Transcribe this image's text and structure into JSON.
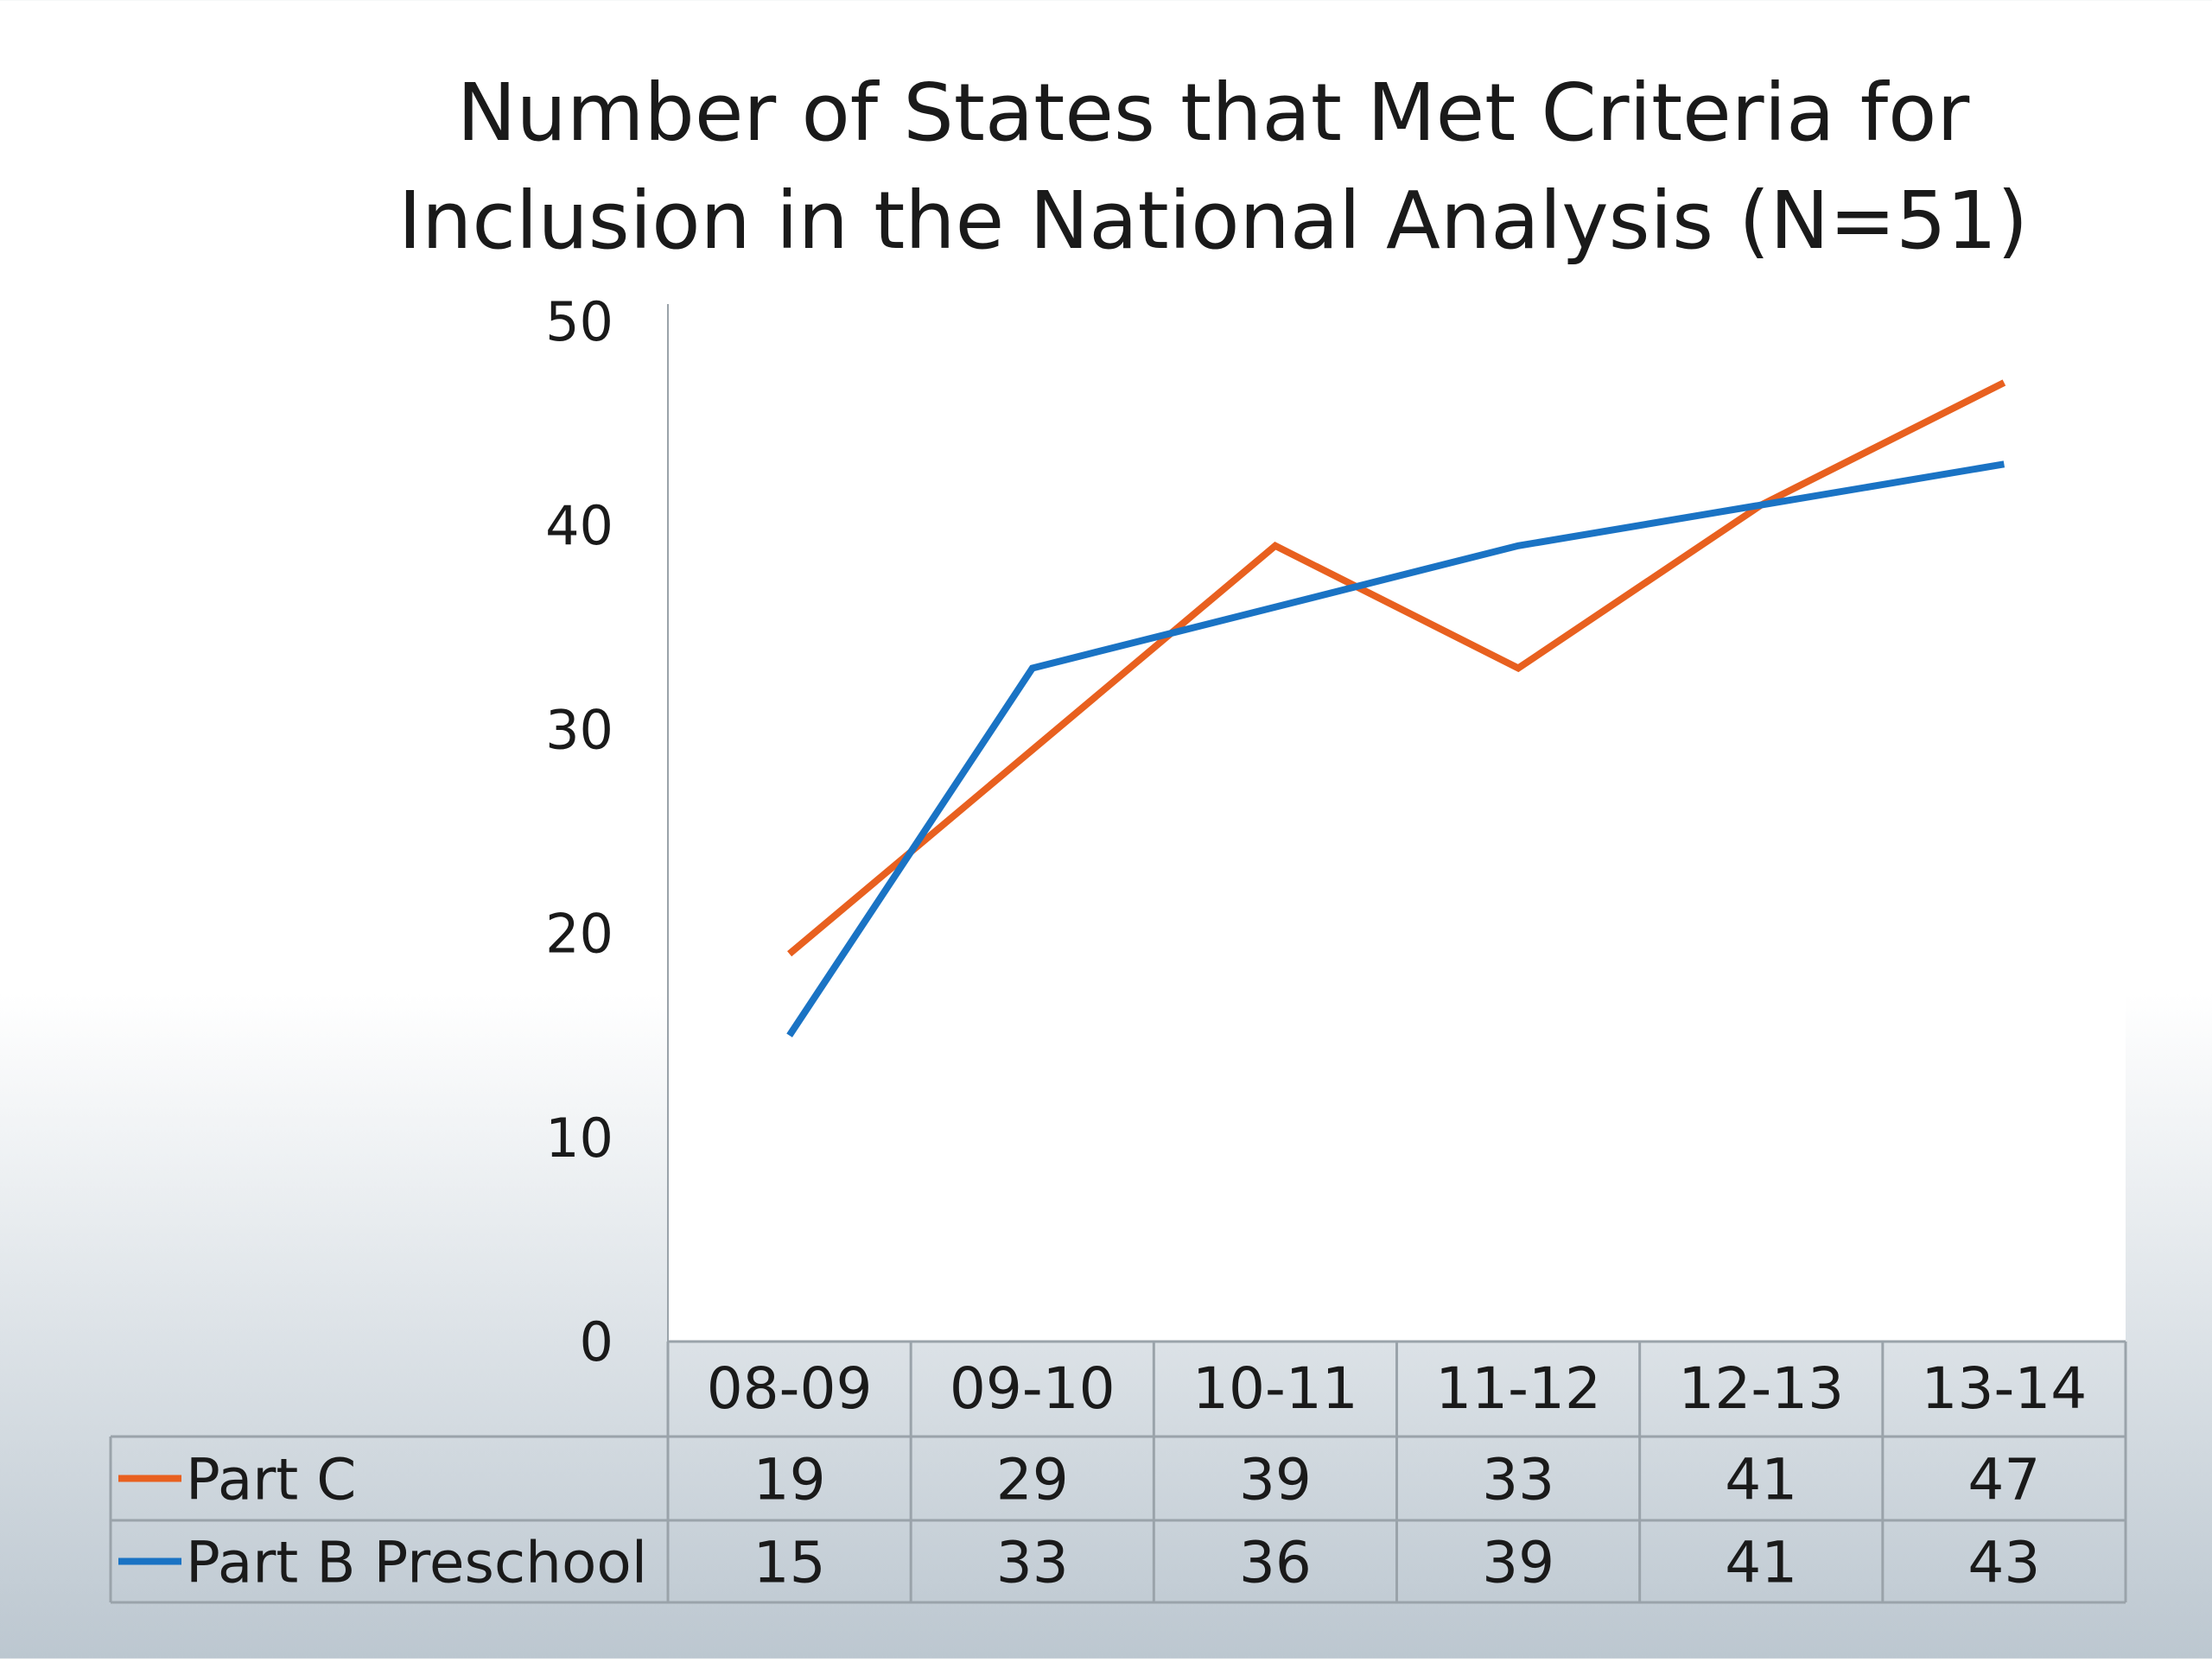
{
  "chart_data": {
    "type": "line",
    "title_lines": [
      "Number of States that Met Criteria for",
      "Inclusion in the National Analysis (N=51)"
    ],
    "categories": [
      "08-09",
      "09-10",
      "10-11",
      "11-12",
      "12-13",
      "13-14"
    ],
    "series": [
      {
        "name": "Part C",
        "color": "#e8601f",
        "values": [
          19,
          29,
          39,
          33,
          41,
          47
        ]
      },
      {
        "name": "Part B Preschool",
        "color": "#1a73c4",
        "values": [
          15,
          33,
          36,
          39,
          41,
          43
        ]
      }
    ],
    "yticks": [
      0,
      10,
      20,
      30,
      40,
      50
    ],
    "ylim": [
      0,
      50
    ],
    "grid": false,
    "legend": "data-table"
  }
}
